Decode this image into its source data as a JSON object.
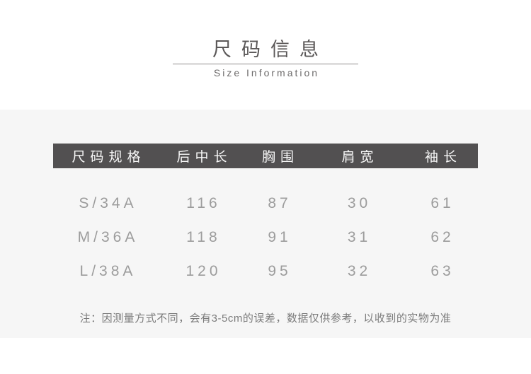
{
  "header": {
    "title": "尺码信息",
    "subtitle": "Size Information"
  },
  "table": {
    "columns": [
      "尺码规格",
      "后中长",
      "胸围",
      "肩宽",
      "袖长"
    ],
    "rows": [
      [
        "S/34A",
        "116",
        "87",
        "30",
        "61"
      ],
      [
        "M/36A",
        "118",
        "91",
        "31",
        "62"
      ],
      [
        "L/38A",
        "120",
        "95",
        "32",
        "63"
      ]
    ]
  },
  "note": {
    "text": "注：因测量方式不同，会有3-5cm的误差，数据仅供参考，以收到的实物为准"
  },
  "colors": {
    "header_bar_background": "#525051",
    "header_bar_text": "#f8f8f8",
    "section_background": "#f6f6f6",
    "title_text": "#5b5858",
    "data_text": "#9c9c9c",
    "note_text": "#7b7b7b"
  }
}
